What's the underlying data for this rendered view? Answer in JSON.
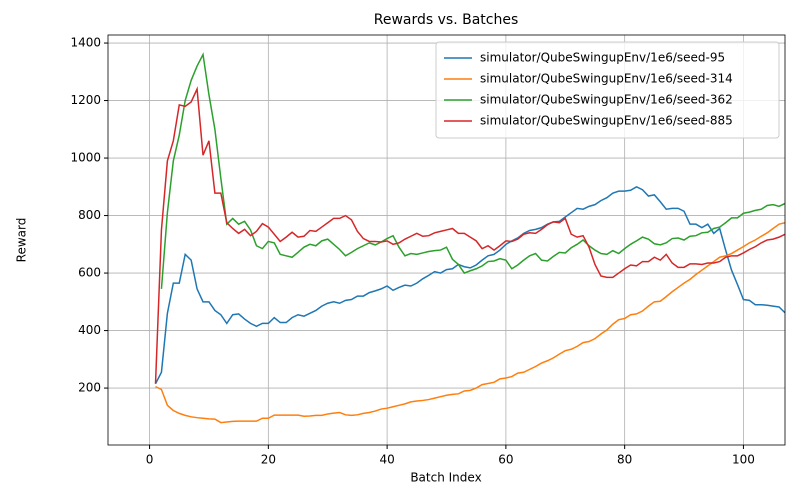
{
  "chart_data": {
    "type": "line",
    "title": "Rewards vs. Batches",
    "x_label": "Batch Index",
    "y_label": "Reward",
    "x": [
      1,
      2,
      3,
      4,
      5,
      6,
      7,
      8,
      9,
      10,
      11,
      12,
      13,
      14,
      15,
      16,
      17,
      18,
      19,
      20,
      21,
      22,
      23,
      24,
      25,
      26,
      27,
      28,
      29,
      30,
      31,
      32,
      33,
      34,
      35,
      36,
      37,
      38,
      39,
      40,
      41,
      42,
      43,
      44,
      45,
      46,
      47,
      48,
      49,
      50,
      51,
      52,
      53,
      54,
      55,
      56,
      57,
      58,
      59,
      60,
      61,
      62,
      63,
      64,
      65,
      66,
      67,
      68,
      69,
      70,
      71,
      72,
      73,
      74,
      75,
      76,
      77,
      78,
      79,
      80,
      81,
      82,
      83,
      84,
      85,
      86,
      87,
      88,
      89,
      90,
      91,
      92,
      93,
      94,
      95,
      96,
      97,
      98,
      99,
      100,
      101,
      102,
      103,
      104,
      105,
      106,
      107
    ],
    "series": [
      {
        "name": "simulator/QubeSwingupEnv/1e6/seed-95",
        "color": "#1f77b4",
        "values": [
          215,
          255,
          460,
          565,
          565,
          665,
          645,
          545,
          500,
          500,
          470,
          455,
          425,
          455,
          458,
          440,
          425,
          415,
          425,
          425,
          445,
          428,
          428,
          445,
          455,
          450,
          460,
          470,
          485,
          495,
          500,
          495,
          505,
          508,
          520,
          520,
          532,
          538,
          545,
          555,
          540,
          550,
          558,
          555,
          565,
          580,
          592,
          605,
          600,
          612,
          615,
          630,
          622,
          618,
          628,
          645,
          660,
          665,
          680,
          700,
          712,
          722,
          738,
          748,
          752,
          758,
          770,
          778,
          780,
          795,
          810,
          825,
          822,
          832,
          838,
          852,
          862,
          878,
          885,
          885,
          888,
          900,
          890,
          868,
          872,
          848,
          822,
          825,
          825,
          815,
          770,
          770,
          758,
          770,
          738,
          755,
          680,
          610,
          560,
          508,
          505,
          490,
          490,
          488,
          485,
          482,
          462
        ]
      },
      {
        "name": "simulator/QubeSwingupEnv/1e6/seed-314",
        "color": "#ff7f0e",
        "values": [
          205,
          195,
          140,
          122,
          112,
          105,
          100,
          97,
          95,
          93,
          92,
          80,
          82,
          84,
          85,
          85,
          85,
          85,
          95,
          95,
          106,
          106,
          106,
          106,
          106,
          102,
          103,
          105,
          105,
          110,
          113,
          115,
          107,
          105,
          107,
          112,
          115,
          120,
          127,
          130,
          135,
          140,
          145,
          152,
          155,
          157,
          160,
          165,
          170,
          175,
          178,
          180,
          190,
          192,
          200,
          212,
          216,
          220,
          232,
          235,
          240,
          252,
          255,
          265,
          275,
          287,
          295,
          305,
          318,
          330,
          335,
          345,
          358,
          362,
          372,
          388,
          402,
          422,
          438,
          442,
          455,
          458,
          468,
          485,
          500,
          502,
          518,
          535,
          550,
          565,
          578,
          595,
          610,
          625,
          640,
          655,
          660,
          668,
          680,
          692,
          705,
          715,
          728,
          740,
          755,
          770,
          775
        ]
      },
      {
        "name": "simulator/QubeSwingupEnv/1e6/seed-362",
        "color": "#2ca02c",
        "values": [
          null,
          545,
          810,
          990,
          1080,
          1200,
          1270,
          1320,
          1360,
          1220,
          1100,
          930,
          770,
          790,
          770,
          780,
          750,
          695,
          685,
          710,
          705,
          665,
          660,
          655,
          672,
          690,
          700,
          695,
          712,
          718,
          700,
          682,
          660,
          672,
          685,
          695,
          705,
          698,
          708,
          720,
          730,
          690,
          660,
          668,
          665,
          670,
          675,
          678,
          680,
          690,
          648,
          630,
          600,
          608,
          615,
          625,
          640,
          642,
          650,
          645,
          615,
          628,
          645,
          660,
          668,
          645,
          642,
          658,
          672,
          670,
          688,
          700,
          715,
          695,
          680,
          668,
          665,
          678,
          668,
          685,
          700,
          712,
          725,
          718,
          702,
          698,
          705,
          720,
          722,
          715,
          728,
          730,
          740,
          742,
          755,
          760,
          775,
          792,
          792,
          808,
          812,
          818,
          822,
          835,
          838,
          832,
          842
        ]
      },
      {
        "name": "simulator/QubeSwingupEnv/1e6/seed-885",
        "color": "#d62728",
        "values": [
          215,
          750,
          990,
          1060,
          1185,
          1180,
          1195,
          1240,
          1010,
          1060,
          878,
          878,
          775,
          755,
          738,
          752,
          730,
          745,
          772,
          760,
          735,
          710,
          725,
          742,
          725,
          728,
          748,
          745,
          760,
          775,
          790,
          790,
          800,
          785,
          745,
          720,
          710,
          710,
          708,
          712,
          700,
          705,
          718,
          728,
          738,
          728,
          730,
          740,
          745,
          750,
          755,
          738,
          738,
          725,
          712,
          685,
          695,
          680,
          695,
          712,
          710,
          718,
          735,
          740,
          738,
          752,
          768,
          778,
          775,
          790,
          735,
          725,
          730,
          690,
          630,
          590,
          585,
          585,
          600,
          615,
          628,
          625,
          640,
          640,
          655,
          645,
          665,
          635,
          620,
          620,
          632,
          632,
          630,
          635,
          635,
          640,
          655,
          660,
          660,
          670,
          682,
          692,
          705,
          715,
          718,
          725,
          735
        ]
      }
    ],
    "xlim": [
      -7,
      107
    ],
    "xticks": [
      0,
      20,
      40,
      60,
      80,
      100
    ],
    "ylim": [
      2,
      1428
    ],
    "yticks": [
      200,
      400,
      600,
      800,
      1000,
      1200,
      1400
    ],
    "grid": true,
    "legend": "upper right"
  }
}
